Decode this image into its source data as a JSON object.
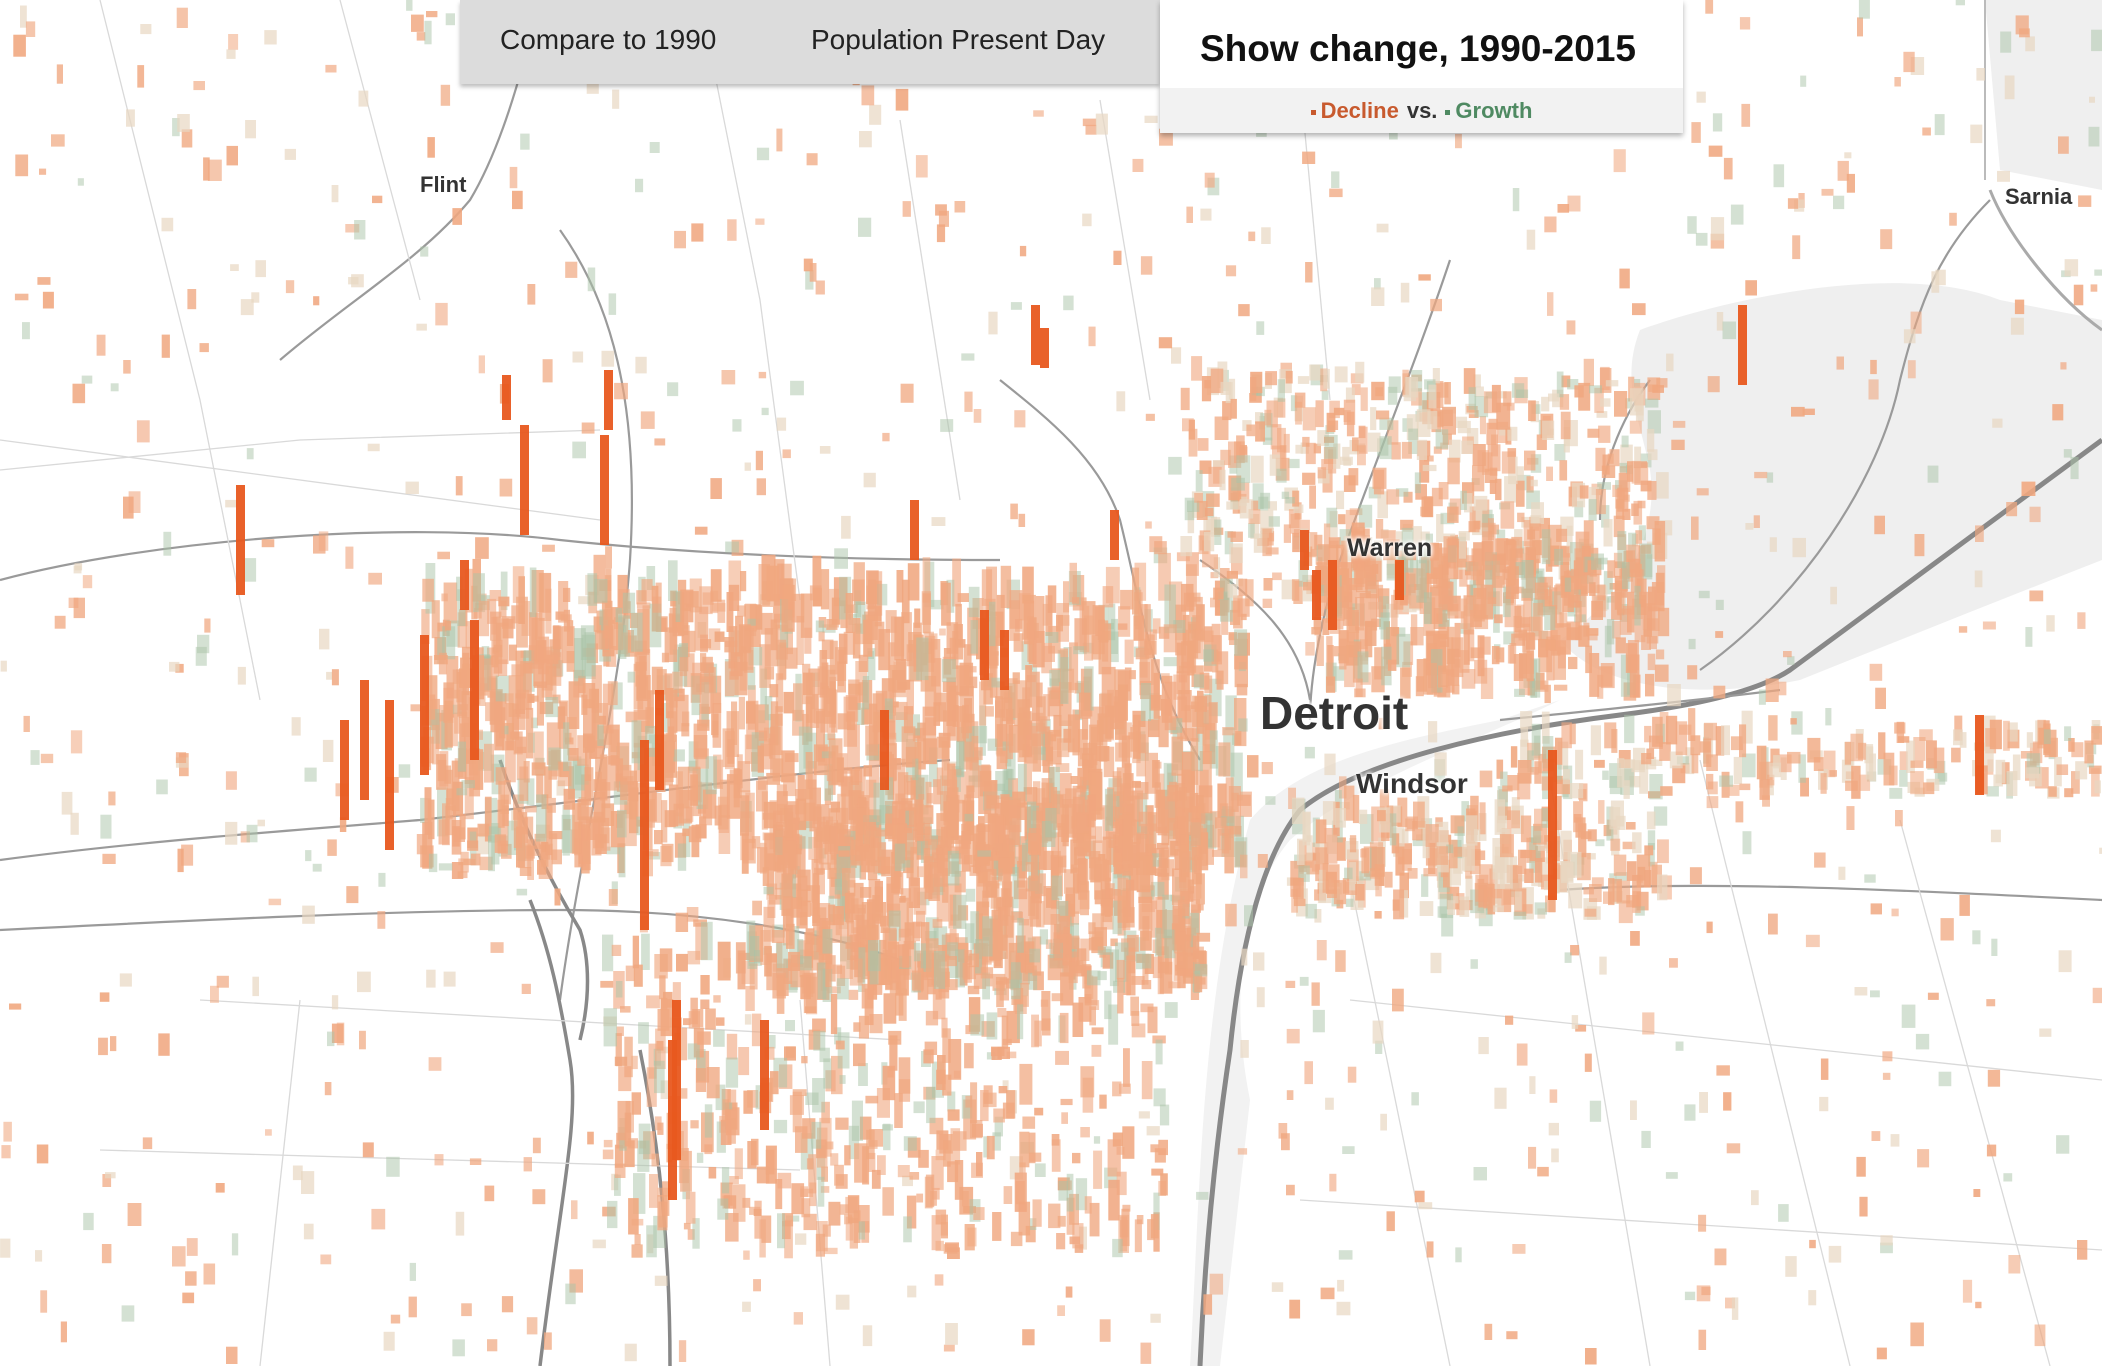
{
  "tabs": {
    "compare_1990": "Compare to 1990",
    "present_day": "Population Present Day",
    "change": "Show change, 1990-2015"
  },
  "legend": {
    "decline": "Decline",
    "vs": "vs.",
    "growth": "Growth"
  },
  "colors": {
    "decline": "#e8581f",
    "decline_light": "#f0a77f",
    "growth": "#a9c3a8",
    "neutral": "#e8d7c2",
    "road": "#9a9a9a",
    "water": "#efefef"
  },
  "places": {
    "flint": "Flint",
    "sarnia": "Sarnia",
    "warren": "Warren",
    "detroit": "Detroit",
    "windsor": "Windsor"
  }
}
